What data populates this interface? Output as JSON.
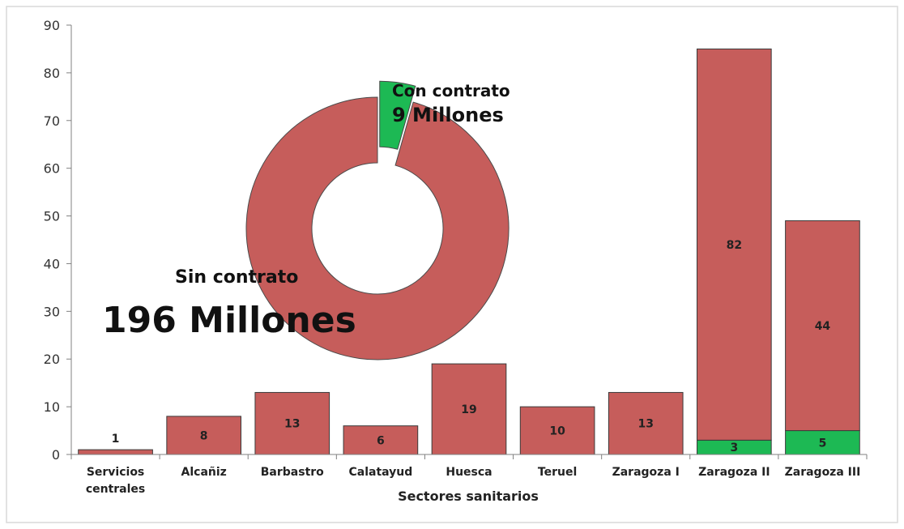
{
  "chart_data": {
    "type": "bar",
    "stacked": true,
    "xlabel": "Sectores sanitarios",
    "ylabel": "",
    "ylim": [
      0,
      90
    ],
    "yticks": [
      0,
      10,
      20,
      30,
      40,
      50,
      60,
      70,
      80,
      90
    ],
    "grid": false,
    "categories": [
      [
        "Servicios",
        "centrales"
      ],
      [
        "Alcañiz"
      ],
      [
        "Barbastro"
      ],
      [
        "Calatayud"
      ],
      [
        "Huesca"
      ],
      [
        "Teruel"
      ],
      [
        "Zaragoza I"
      ],
      [
        "Zaragoza II"
      ],
      [
        "Zaragoza III"
      ]
    ],
    "series": [
      {
        "key": "con",
        "color": "#1db954",
        "values": [
          0,
          0,
          0,
          0,
          0,
          0,
          0,
          3,
          5
        ]
      },
      {
        "key": "sin",
        "color": "#c65d5b",
        "values": [
          1,
          8,
          13,
          6,
          19,
          10,
          13,
          82,
          44
        ]
      }
    ],
    "data_labels": [
      {
        "series": "sin",
        "index": 0,
        "text": "1",
        "placement": "above"
      },
      {
        "series": "sin",
        "index": 1,
        "text": "8"
      },
      {
        "series": "sin",
        "index": 2,
        "text": "13"
      },
      {
        "series": "sin",
        "index": 3,
        "text": "6"
      },
      {
        "series": "sin",
        "index": 4,
        "text": "19"
      },
      {
        "series": "sin",
        "index": 5,
        "text": "10"
      },
      {
        "series": "sin",
        "index": 6,
        "text": "13"
      },
      {
        "series": "sin",
        "index": 7,
        "text": "82"
      },
      {
        "series": "sin",
        "index": 8,
        "text": "44"
      },
      {
        "series": "con",
        "index": 7,
        "text": "3"
      },
      {
        "series": "con",
        "index": 8,
        "text": "5"
      }
    ],
    "inset_donut": {
      "type": "pie",
      "slices": [
        {
          "key": "sin",
          "value": 196,
          "color": "#c65d5b",
          "label_line1": "Sin contrato",
          "label_line2": "196 Millones"
        },
        {
          "key": "con",
          "value": 9,
          "color": "#1db954",
          "label_line1": "Con contrato",
          "label_line2": "9 Millones",
          "exploded": true
        }
      ]
    }
  }
}
